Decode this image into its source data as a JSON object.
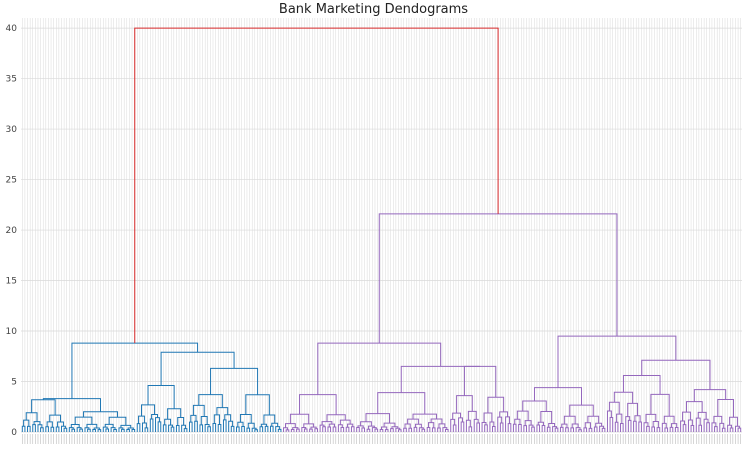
{
  "chart_data": {
    "type": "dendrogram",
    "title": "Bank Marketing Dendograms",
    "xlabel": "",
    "ylabel": "",
    "ylim": [
      0,
      41
    ],
    "yticks": [
      0,
      5,
      10,
      15,
      20,
      25,
      30,
      35,
      40
    ],
    "grid": true,
    "leaf_count": 276,
    "clusters": [
      {
        "color": "#1f77b4",
        "leaves": 100
      },
      {
        "color": "#9467bd",
        "leaves": 176
      }
    ],
    "root_merge": {
      "height": 40.0,
      "color": "#d62728"
    },
    "upper_merges": [
      {
        "cluster": 0,
        "height": 8.8
      },
      {
        "cluster": 1,
        "height": 21.6
      },
      {
        "cluster": 1,
        "height": 9.5
      },
      {
        "cluster": 1,
        "height": 8.8
      }
    ],
    "colors": {
      "cluster_1": "#1f77b4",
      "cluster_2": "#9467bd",
      "root": "#d62728",
      "grid": "#d9d9d9"
    }
  }
}
